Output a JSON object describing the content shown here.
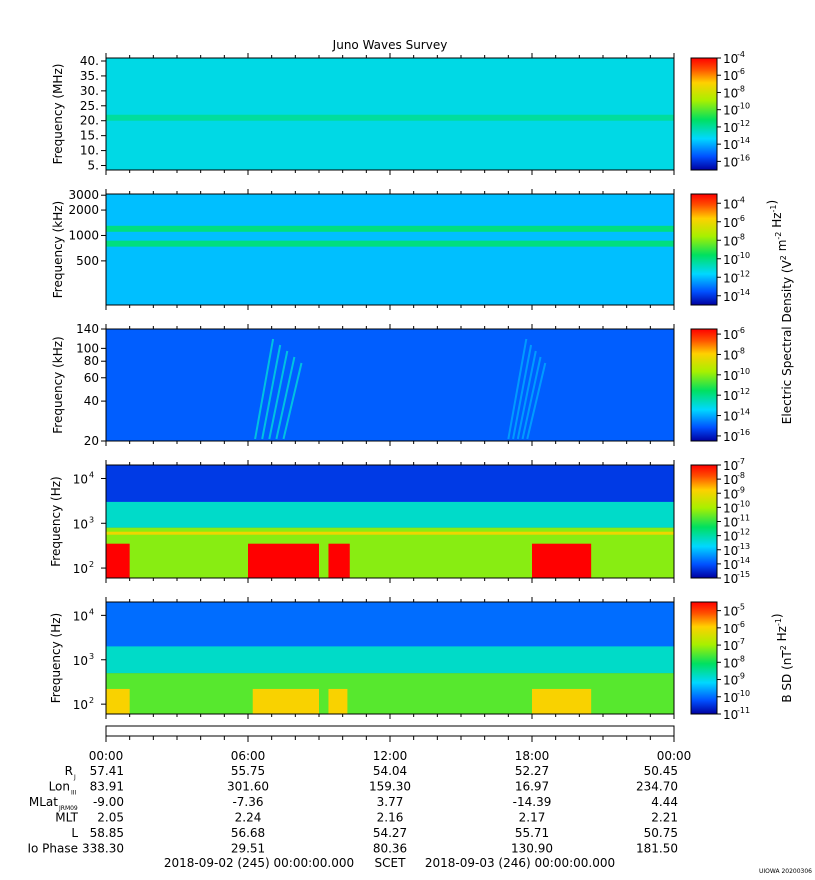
{
  "chart_data": [
    {
      "type": "heatmap",
      "title": "Juno Waves Survey",
      "ylabel": "Frequency (MHz)",
      "yticks": [
        "40.",
        "35.",
        "30.",
        "25.",
        "20.",
        "15.",
        "10.",
        "5."
      ],
      "ytick_values": [
        40,
        35,
        30,
        25,
        20,
        15,
        10,
        5
      ],
      "ylim": [
        3.5,
        41
      ],
      "scale": "linear",
      "colorbar": {
        "ticks": [
          "-4",
          "-6",
          "-8",
          "-10",
          "-12",
          "-14",
          "-16"
        ],
        "values": [
          -4,
          -6,
          -8,
          -10,
          -12,
          -14,
          -16
        ],
        "range": [
          -17,
          -4
        ],
        "base": "10"
      },
      "features": [
        {
          "kind": "band",
          "y": 21,
          "level": -12
        }
      ],
      "background_level": -13
    },
    {
      "type": "heatmap",
      "ylabel": "Frequency (kHz)",
      "yticks": [
        "3000",
        "2000",
        "1000",
        "500"
      ],
      "ytick_values": [
        3000,
        2000,
        1000,
        500
      ],
      "ylim": [
        150,
        3100
      ],
      "scale": "log",
      "colorbar": {
        "ticks": [
          "-4",
          "-6",
          "-8",
          "-10",
          "-12",
          "-14"
        ],
        "values": [
          -4,
          -6,
          -8,
          -10,
          -12,
          -14
        ],
        "range": [
          -15,
          -3
        ],
        "base": "10",
        "label": "Electric Spectral Density (V",
        "label_sup1": "2",
        "label_mid": " m",
        "label_sup2": "-2",
        "label_mid2": " Hz",
        "label_sup3": "-1",
        "label_end": ")"
      },
      "features": [
        {
          "kind": "band",
          "y": 1200,
          "level": -10
        },
        {
          "kind": "band",
          "y": 800,
          "level": -10
        }
      ],
      "background_level": -12
    },
    {
      "type": "heatmap",
      "ylabel": "Frequency (kHz)",
      "yticks": [
        "140",
        "100",
        "80",
        "60",
        "40",
        "20"
      ],
      "ytick_values": [
        140,
        100,
        80,
        60,
        40,
        20
      ],
      "ylim": [
        20,
        140
      ],
      "scale": "log",
      "colorbar": {
        "ticks": [
          "-6",
          "-8",
          "-10",
          "-12",
          "-14",
          "-16"
        ],
        "values": [
          -6,
          -8,
          -10,
          -12,
          -14,
          -16
        ],
        "range": [
          -16.5,
          -5.5
        ],
        "base": "10"
      },
      "features": [
        {
          "kind": "burst",
          "x_hours": [
            6.3,
            7.8
          ],
          "level": -13
        },
        {
          "kind": "burst",
          "x_hours": [
            17.0,
            18.0
          ],
          "level": -14
        }
      ],
      "background_level": -15
    },
    {
      "type": "heatmap",
      "ylabel": "Frequency (Hz)",
      "yticks": [
        "4",
        "3",
        "2"
      ],
      "ytick_values": [
        10000,
        1000,
        100
      ],
      "ylim": [
        60,
        20000
      ],
      "scale": "log",
      "colorbar": {
        "ticks": [
          "-7",
          "-8",
          "-9",
          "-10",
          "-11",
          "-12",
          "-13",
          "-14",
          "-15"
        ],
        "values": [
          -7,
          -8,
          -9,
          -10,
          -11,
          -12,
          -13,
          -14,
          -15
        ],
        "range": [
          -15,
          -7
        ],
        "base": "10"
      },
      "features": [
        {
          "kind": "hot",
          "x_hours": [
            0,
            1.0
          ],
          "level": -7
        },
        {
          "kind": "hot",
          "x_hours": [
            6.0,
            9.0
          ],
          "level": -7
        },
        {
          "kind": "hot",
          "x_hours": [
            9.4,
            10.3
          ],
          "level": -7
        },
        {
          "kind": "hot",
          "x_hours": [
            18.0,
            20.5
          ],
          "level": -7
        }
      ],
      "background_level": -14
    },
    {
      "type": "heatmap",
      "ylabel": "Frequency (Hz)",
      "yticks": [
        "4",
        "3",
        "2"
      ],
      "ytick_values": [
        10000,
        1000,
        100
      ],
      "ylim": [
        60,
        20000
      ],
      "scale": "log",
      "colorbar": {
        "ticks": [
          "-5",
          "-6",
          "-7",
          "-8",
          "-9",
          "-10",
          "-11"
        ],
        "values": [
          -5,
          -6,
          -7,
          -8,
          -9,
          -10,
          -11
        ],
        "range": [
          -11,
          -4.5
        ],
        "base": "10",
        "label": "B SD (nT",
        "label_sup1": "2",
        "label_mid": " Hz",
        "label_sup2": "-1",
        "label_end": ")"
      },
      "features": [
        {
          "kind": "warm",
          "x_hours": [
            0,
            1.0
          ],
          "level": -6
        },
        {
          "kind": "warm",
          "x_hours": [
            6.2,
            9.0
          ],
          "level": -6
        },
        {
          "kind": "warm",
          "x_hours": [
            9.4,
            10.2
          ],
          "level": -6
        },
        {
          "kind": "warm",
          "x_hours": [
            18.0,
            20.5
          ],
          "level": -6
        }
      ],
      "background_level": -10
    }
  ],
  "xaxis": {
    "ticks": [
      "00:00",
      "06:00",
      "12:00",
      "18:00",
      "00:00"
    ],
    "hours": [
      0,
      6,
      12,
      18,
      24
    ]
  },
  "ephemeris": {
    "rows": [
      {
        "label": "R",
        "sub": "J",
        "values": [
          "57.41",
          "55.75",
          "54.04",
          "52.27",
          "50.45"
        ]
      },
      {
        "label": "Lon",
        "sub": "III",
        "values": [
          "83.91",
          "301.60",
          "159.30",
          "16.97",
          "234.70"
        ]
      },
      {
        "label": "MLat",
        "sub": "JRM09",
        "values": [
          "-9.00",
          "-7.36",
          "3.77",
          "-14.39",
          "4.44"
        ]
      },
      {
        "label": "MLT",
        "sub": "",
        "values": [
          "2.05",
          "2.24",
          "2.16",
          "2.17",
          "2.21"
        ]
      },
      {
        "label": "L",
        "sub": "",
        "values": [
          "58.85",
          "56.68",
          "54.27",
          "55.71",
          "50.75"
        ]
      },
      {
        "label": "Io Phase",
        "sub": "",
        "values": [
          "338.30",
          "29.51",
          "80.36",
          "130.90",
          "181.50"
        ]
      }
    ]
  },
  "footer": {
    "start": "2018-09-02 (245) 00:00:00.000",
    "scet": "SCET",
    "end": "2018-09-03 (246) 00:00:00.000",
    "stamp": "UIOWA 20200306"
  }
}
